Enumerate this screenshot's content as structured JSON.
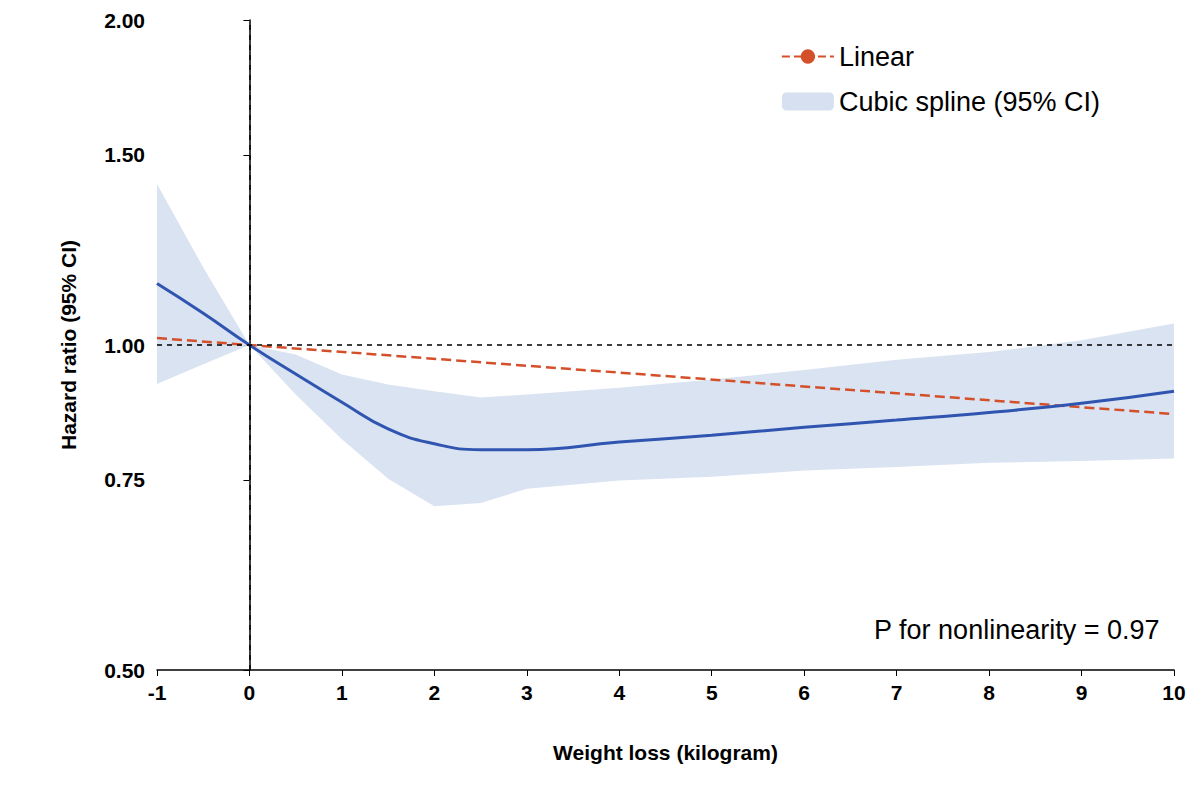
{
  "chart_data": {
    "type": "line",
    "xlabel": "Weight loss (kilogram)",
    "ylabel": "Hazard ratio (95% CI)",
    "xlim": [
      -1,
      10
    ],
    "xticks": [
      -1,
      0,
      1,
      2,
      3,
      4,
      5,
      6,
      7,
      8,
      9,
      10
    ],
    "ylim": [
      0.5,
      2
    ],
    "yticks": [
      {
        "value": 0.5,
        "label": "0.50"
      },
      {
        "value": 0.75,
        "label": "0.75"
      },
      {
        "value": 1,
        "label": "1.00"
      },
      {
        "value": 1.5,
        "label": "1.50"
      },
      {
        "value": 2,
        "label": "2.00"
      }
    ],
    "log": "y",
    "grid": false,
    "legend": "upper right",
    "reference_lines": {
      "x": 0,
      "y": 1
    },
    "annotation": "P for nonlinearity = 0.97",
    "series": [
      {
        "name": "Linear",
        "color": "#d4502a",
        "line_style": "dashed",
        "x": [
          -1,
          0,
          10
        ],
        "values": [
          1.015,
          1.0,
          0.863
        ]
      },
      {
        "name": "Cubic spline (95% CI)",
        "color": "#2f55b0",
        "line_style": "solid",
        "x": [
          -1,
          -0.5,
          0,
          0.5,
          1,
          1.5,
          2,
          2.5,
          3,
          4,
          5,
          6,
          7,
          8,
          9,
          10
        ],
        "values": [
          1.14,
          1.07,
          1.0,
          0.94,
          0.885,
          0.836,
          0.81,
          0.8,
          0.8,
          0.813,
          0.825,
          0.839,
          0.852,
          0.866,
          0.883,
          0.906
        ],
        "ci_lower": [
          0.92,
          0.96,
          1.0,
          0.9,
          0.818,
          0.752,
          0.709,
          0.714,
          0.736,
          0.749,
          0.755,
          0.765,
          0.771,
          0.778,
          0.781,
          0.785
        ],
        "ci_upper": [
          1.41,
          1.18,
          1.0,
          0.98,
          0.939,
          0.919,
          0.906,
          0.894,
          0.9,
          0.913,
          0.929,
          0.948,
          0.969,
          0.985,
          1.01,
          1.047
        ]
      }
    ]
  }
}
